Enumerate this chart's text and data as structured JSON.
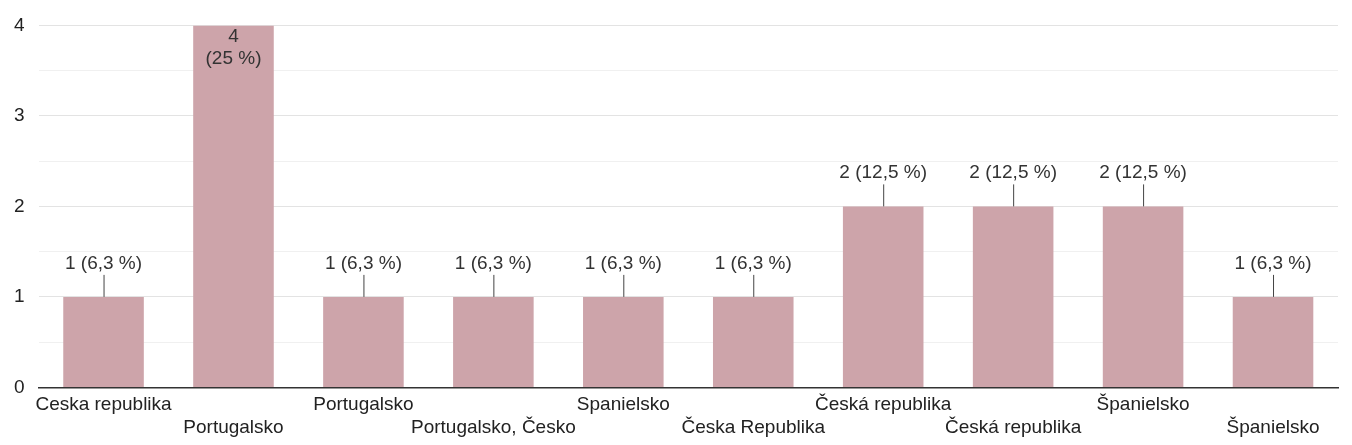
{
  "chart_data": {
    "type": "bar",
    "categories": [
      "Ceska republika",
      "Portugalsko",
      "Portugalsko",
      "Portugalsko, Česko",
      "Spanielsko",
      "Česka Republika",
      "Česká republika",
      "Česká republika",
      "Španielsko",
      "Španielsko"
    ],
    "values": [
      1,
      4,
      1,
      1,
      1,
      1,
      2,
      2,
      2,
      1
    ],
    "color": "#cda4aa",
    "value_labels": [
      "1 (6,3 %)",
      "4 (25 %)",
      "1 (6,3 %)",
      "1 (6,3 %)",
      "1 (6,3 %)",
      "1 (6,3 %)",
      "2 (12,5 %)",
      "2 (12,5 %)",
      "2 (12,5 %)",
      "1 (6,3 %)"
    ],
    "ylim": [
      0,
      4
    ],
    "yticks": [
      0,
      {
        "value": 0.5,
        "label": null
      },
      1,
      {
        "value": 1.5,
        "label": null
      },
      2,
      {
        "value": 2.5,
        "label": null
      },
      3,
      {
        "value": 3.5,
        "label": null
      },
      4
    ],
    "grid": "y",
    "legend": false
  }
}
